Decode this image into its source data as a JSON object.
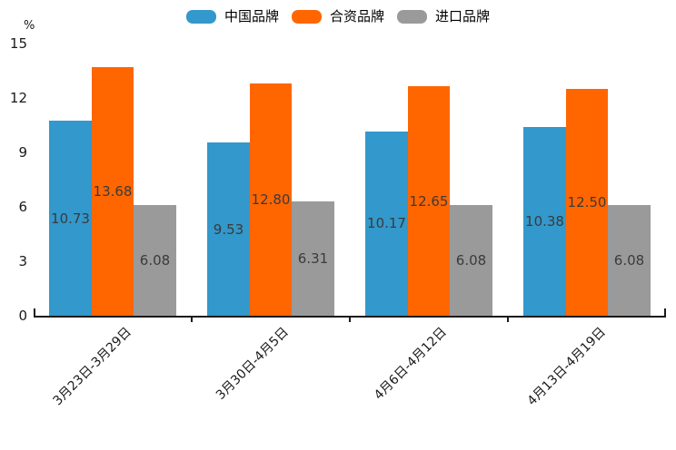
{
  "chart_data": {
    "type": "bar",
    "title": "",
    "ylabel": "%",
    "xlabel": "",
    "ylim": [
      0,
      15
    ],
    "y_ticks": [
      0,
      3,
      6,
      9,
      12,
      15
    ],
    "grid": false,
    "legend_position": "top",
    "categories": [
      "3月23日-3月29日",
      "3月30日-4月5日",
      "4月6日-4月12日",
      "4月13日-4月19日"
    ],
    "series": [
      {
        "name": "中国品牌",
        "color": "#3398CB",
        "values": [
          10.73,
          9.53,
          10.17,
          10.38
        ],
        "labels": [
          "10.73",
          "9.53",
          "10.17",
          "10.38"
        ]
      },
      {
        "name": "合资品牌",
        "color": "#FF6600",
        "values": [
          13.68,
          12.8,
          12.65,
          12.5
        ],
        "labels": [
          "13.68",
          "12.80",
          "12.65",
          "12.50"
        ]
      },
      {
        "name": "进口品牌",
        "color": "#9A9A9A",
        "values": [
          6.08,
          6.31,
          6.08,
          6.08
        ],
        "labels": [
          "6.08",
          "6.31",
          "6.08",
          "6.08"
        ]
      }
    ],
    "axis_color": "#1a1a1a",
    "bar_label_color": "#3b3b3b"
  }
}
